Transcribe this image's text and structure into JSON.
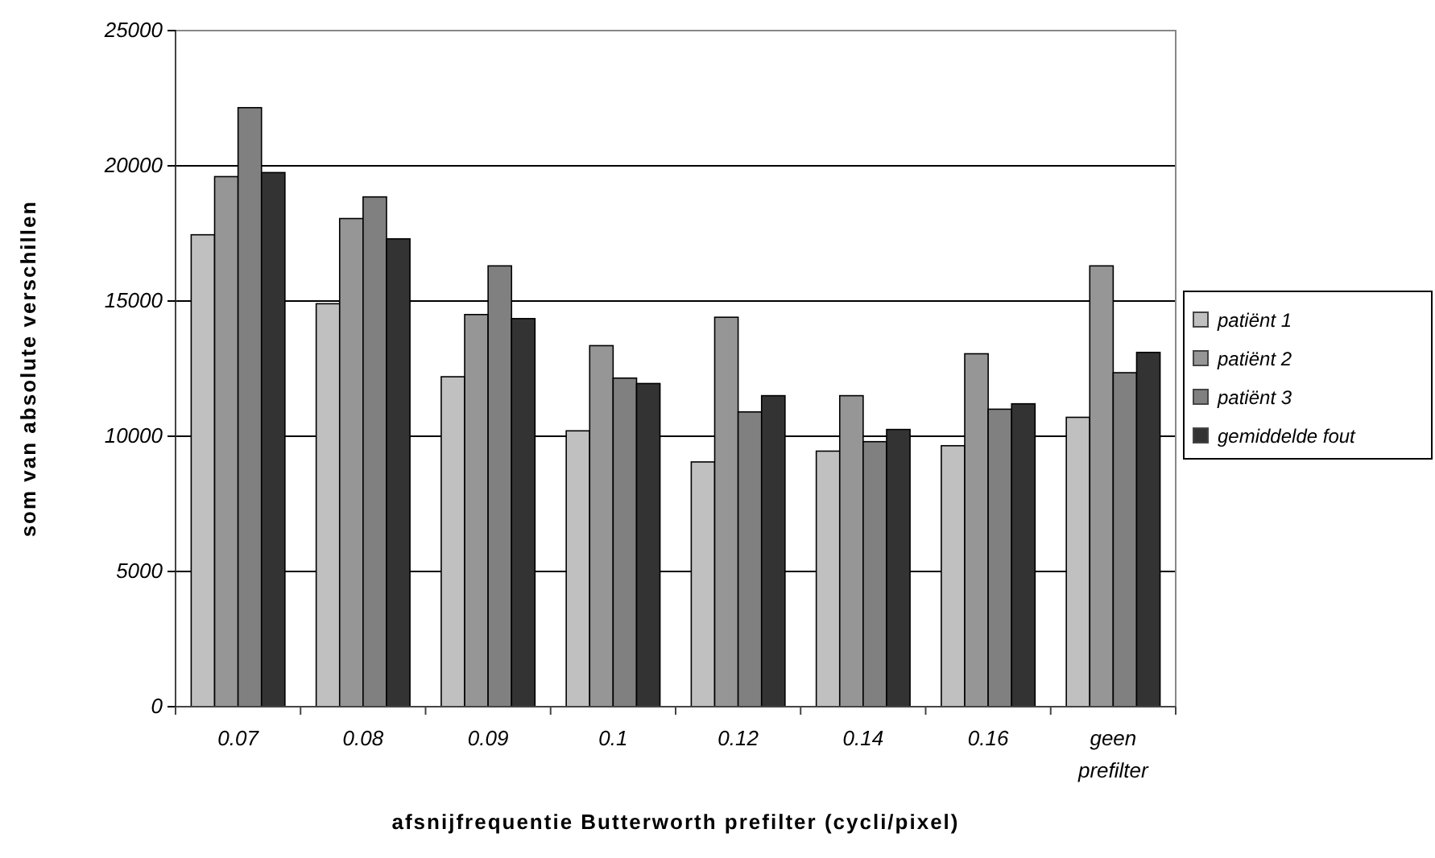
{
  "chart_data": {
    "type": "bar",
    "xlabel": "afsnijfrequentie Butterworth prefilter (cycli/pixel)",
    "ylabel": "som van absolute verschillen",
    "categories": [
      "0.07",
      "0.08",
      "0.09",
      "0.1",
      "0.12",
      "0.14",
      "0.16",
      "geen prefilter"
    ],
    "series": [
      {
        "name": "patiënt 1",
        "color": "#c0c0c0",
        "values": [
          17450,
          14900,
          12200,
          10200,
          9050,
          9450,
          9650,
          10700
        ]
      },
      {
        "name": "patiënt 2",
        "color": "#969696",
        "values": [
          19600,
          18050,
          14500,
          13350,
          14400,
          11500,
          13050,
          16300
        ]
      },
      {
        "name": "patiënt 3",
        "color": "#808080",
        "values": [
          22150,
          18850,
          16300,
          12150,
          10900,
          9800,
          11000,
          12350
        ]
      },
      {
        "name": "gemiddelde fout",
        "color": "#333333",
        "values": [
          19750,
          17300,
          14350,
          11950,
          11500,
          10250,
          11200,
          13100
        ]
      }
    ],
    "ylim": [
      0,
      25000
    ],
    "yticks": [
      0,
      5000,
      10000,
      15000,
      20000,
      25000
    ],
    "grid": "y",
    "legend": "right"
  }
}
